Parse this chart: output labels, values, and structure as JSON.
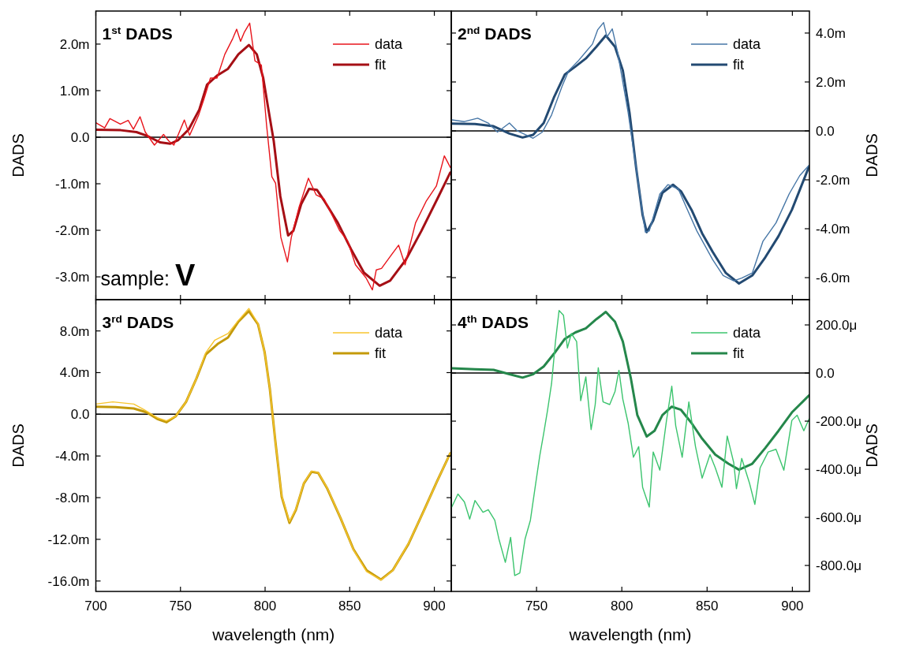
{
  "chart_data": [
    {
      "type": "line",
      "title": "1$^{st}$ DADS",
      "ylabel": "DADS",
      "xlim": [
        700,
        910
      ],
      "xticks": [
        700,
        750,
        800,
        850,
        900
      ],
      "ylim": [
        -3.49,
        2.71
      ],
      "yticks": [
        {
          "value": -3,
          "label": "-3.0m"
        },
        {
          "value": -2,
          "label": "-2.0m"
        },
        {
          "value": -1,
          "label": "-1.0m"
        },
        {
          "value": 0,
          "label": "0.0"
        },
        {
          "value": 1,
          "label": "1.0m"
        },
        {
          "value": 2,
          "label": "2.0m"
        }
      ],
      "tick_labels": "y",
      "legend": "top right",
      "ref_lines": [
        {
          "axis": "y",
          "value": 0,
          "color": "#000000"
        }
      ],
      "annotations": [
        "sample: V"
      ],
      "series": [
        {
          "name": "data",
          "color": "#e8141b",
          "x": [
            700,
            705.2,
            708.3,
            714.5,
            719.1,
            722.2,
            726.1,
            729.2,
            734.6,
            740,
            743.1,
            746.1,
            752.3,
            755.4,
            760.8,
            763.9,
            767.7,
            771.6,
            776.2,
            780.9,
            783.2,
            785.5,
            787.8,
            790.9,
            794,
            797.8,
            800.9,
            804,
            806.2,
            809.3,
            813.2,
            815.5,
            820.1,
            825.6,
            830.2,
            834.9,
            839.5,
            844.1,
            848.8,
            853.4,
            859.6,
            863.4,
            865.7,
            868.8,
            875,
            878.9,
            882.7,
            888.9,
            895.1,
            901.2,
            905.9,
            909.5
          ],
          "values": [
            0.31,
            0.2,
            0.4,
            0.28,
            0.36,
            0.17,
            0.44,
            0.11,
            -0.17,
            0.06,
            -0.08,
            -0.17,
            0.37,
            0.04,
            0.48,
            0.82,
            1.27,
            1.27,
            1.78,
            2.12,
            2.32,
            2.06,
            2.26,
            2.45,
            1.64,
            1.55,
            0.25,
            -0.85,
            -0.99,
            -2.15,
            -2.68,
            -2.15,
            -1.5,
            -0.88,
            -1.24,
            -1.33,
            -1.67,
            -2.01,
            -2.23,
            -2.74,
            -3.02,
            -3.28,
            -2.85,
            -2.82,
            -2.51,
            -2.32,
            -2.74,
            -1.84,
            -1.38,
            -1.05,
            -0.4,
            -0.65
          ]
        },
        {
          "name": "fit",
          "color": "#a50f15",
          "x": [
            700,
            714.7,
            724,
            730.1,
            737.9,
            744,
            748.7,
            754.9,
            761.1,
            765.7,
            771.9,
            778.1,
            784.2,
            790.4,
            795.1,
            798.9,
            802,
            805.1,
            809,
            813.6,
            816.7,
            821.3,
            826,
            830.6,
            835.2,
            843,
            850.7,
            858.4,
            867.7,
            873.9,
            883.2,
            892.4,
            901.7,
            909.4
          ],
          "values": [
            0.16,
            0.15,
            0.11,
            0.03,
            -0.11,
            -0.14,
            -0.06,
            0.17,
            0.59,
            1.13,
            1.33,
            1.47,
            1.78,
            1.98,
            1.78,
            1.27,
            0.59,
            -0.08,
            -1.27,
            -2.11,
            -2.01,
            -1.44,
            -1.11,
            -1.13,
            -1.38,
            -1.84,
            -2.4,
            -2.91,
            -3.19,
            -3.08,
            -2.63,
            -2.01,
            -1.33,
            -0.76
          ]
        }
      ]
    },
    {
      "type": "line",
      "title": "2$^{nd}$ DADS",
      "ylabel": "DADS",
      "xlim": [
        700,
        910
      ],
      "xticks": [
        750,
        800,
        850,
        900
      ],
      "ylim": [
        -6.9,
        4.9
      ],
      "yticks": [
        {
          "value": -6,
          "label": "-6.0m"
        },
        {
          "value": -4,
          "label": "-4.0m"
        },
        {
          "value": -2,
          "label": "-2.0m"
        },
        {
          "value": 0,
          "label": "0.0"
        },
        {
          "value": 2,
          "label": "2.0m"
        },
        {
          "value": 4,
          "label": "4.0m"
        }
      ],
      "tick_labels": "y",
      "legend": "top right",
      "ref_lines": [
        {
          "axis": "y",
          "value": 0,
          "color": "#000000"
        }
      ],
      "series": [
        {
          "name": "data",
          "color": "#4676a6",
          "x": [
            700.3,
            707.7,
            715.5,
            721.7,
            727.1,
            734.1,
            738.7,
            748,
            753.4,
            758.8,
            765,
            768.9,
            774.3,
            778.9,
            782.8,
            785.9,
            789.3,
            791.3,
            794.4,
            797.5,
            803.7,
            808.4,
            813.8,
            816.1,
            822.3,
            827,
            833.1,
            837.8,
            844,
            853.3,
            859.4,
            865.6,
            870.3,
            876.5,
            882.7,
            890.4,
            898.1,
            904.3,
            909.8
          ],
          "values": [
            0.45,
            0.38,
            0.52,
            0.32,
            -0.05,
            0.32,
            0,
            -0.3,
            -0.05,
            0.65,
            1.83,
            2.47,
            2.85,
            3.23,
            3.55,
            4.14,
            4.43,
            3.84,
            4.17,
            3.23,
            0.75,
            -1.51,
            -4.14,
            -4.09,
            -2.58,
            -2.2,
            -2.37,
            -3.12,
            -4.09,
            -5.27,
            -5.91,
            -6.13,
            -6.02,
            -5.81,
            -4.52,
            -3.76,
            -2.58,
            -1.83,
            -1.4
          ]
        },
        {
          "name": "fit",
          "color": "#234a72",
          "x": [
            700.3,
            713.9,
            724.8,
            734.1,
            741.8,
            748,
            754.2,
            760.4,
            766.6,
            772.8,
            778.9,
            785.1,
            790.6,
            796,
            800.6,
            804.5,
            808.4,
            812.2,
            814.6,
            818.4,
            823.8,
            830,
            834.7,
            840.9,
            847.1,
            853.3,
            861,
            868.7,
            876.5,
            884.2,
            891.9,
            899.7,
            909.8
          ],
          "values": [
            0.3,
            0.28,
            0.19,
            -0.11,
            -0.27,
            -0.16,
            0.32,
            1.4,
            2.31,
            2.63,
            2.96,
            3.44,
            3.9,
            3.44,
            2.47,
            0.75,
            -1.51,
            -3.44,
            -4.14,
            -3.66,
            -2.53,
            -2.2,
            -2.47,
            -3.23,
            -4.19,
            -4.95,
            -5.81,
            -6.24,
            -5.91,
            -5.16,
            -4.3,
            -3.23,
            -1.45
          ]
        }
      ]
    },
    {
      "type": "line",
      "title": "3$^{rd}$ DADS",
      "ylabel": "DADS",
      "xlabel": "wavelength (nm)",
      "xlim": [
        700,
        910
      ],
      "xticks": [
        700,
        750,
        800,
        850,
        900
      ],
      "ylim": [
        -17,
        11
      ],
      "yticks": [
        {
          "value": -16,
          "label": "-16.0m"
        },
        {
          "value": -12,
          "label": "-12.0m"
        },
        {
          "value": -8,
          "label": "-8.0m"
        },
        {
          "value": -4,
          "label": "-4.0m"
        },
        {
          "value": 0,
          "label": "0.0"
        },
        {
          "value": 4,
          "label": "4.0m"
        },
        {
          "value": 8,
          "label": "8.0m"
        }
      ],
      "legend": "top right",
      "ref_lines": [
        {
          "axis": "y",
          "value": 0,
          "color": "#000000"
        }
      ],
      "series": [
        {
          "name": "data",
          "color": "#f7c52e",
          "x": [
            700,
            710,
            722.4,
            728.6,
            736.3,
            741.7,
            747.1,
            753.3,
            759.5,
            764.9,
            770.3,
            778.1,
            784.2,
            790.4,
            795.8,
            799.7,
            802.8,
            805.9,
            809.8,
            814.4,
            818.2,
            822.9,
            827.5,
            831.4,
            836.8,
            844.5,
            852.2,
            860,
            868.5,
            875.4,
            884.7,
            894,
            901.7,
            909.4
          ],
          "values": [
            0.98,
            1.19,
            0.98,
            0.43,
            -0.33,
            -0.63,
            -0.2,
            1.19,
            3.46,
            5.9,
            7.12,
            7.75,
            9,
            10.15,
            8.7,
            5.98,
            2.45,
            -2.35,
            -7.8,
            -10.3,
            -9.1,
            -6.6,
            -5.45,
            -5.6,
            -7.1,
            -9.9,
            -13,
            -15.1,
            -15.9,
            -15,
            -12.4,
            -9.2,
            -6.4,
            -3.74
          ]
        },
        {
          "name": "fit",
          "color": "#c49a0a",
          "x": [
            700,
            711.6,
            722.4,
            730.1,
            736.3,
            741.7,
            747.1,
            753.3,
            759.5,
            764.9,
            771.9,
            778.1,
            784.2,
            790.4,
            795.8,
            799.7,
            802.8,
            805.9,
            809.8,
            814.4,
            818.2,
            822.9,
            827.5,
            831.4,
            836.8,
            844.5,
            852.2,
            860,
            868.5,
            875.4,
            884.7,
            894,
            901.7,
            909.4
          ],
          "values": [
            0.73,
            0.68,
            0.56,
            0.18,
            -0.45,
            -0.76,
            -0.2,
            1.19,
            3.46,
            5.73,
            6.74,
            7.37,
            8.89,
            9.9,
            8.64,
            5.98,
            2.45,
            -2.35,
            -7.9,
            -10.43,
            -9.17,
            -6.64,
            -5.51,
            -5.63,
            -7.15,
            -9.93,
            -12.95,
            -14.97,
            -15.86,
            -14.97,
            -12.45,
            -9.17,
            -6.39,
            -3.74
          ]
        }
      ]
    },
    {
      "type": "line",
      "title": "4$^{th}$ DADS",
      "ylabel": "DADS",
      "xlabel": "wavelength (nm)",
      "xlim": [
        700,
        910
      ],
      "xticks": [
        750,
        800,
        850,
        900
      ],
      "ylim": [
        -908,
        305
      ],
      "yticks": [
        {
          "value": -800,
          "label": "-800.0μ"
        },
        {
          "value": -600,
          "label": "-600.0μ"
        },
        {
          "value": -400,
          "label": "-400.0μ"
        },
        {
          "value": -200,
          "label": "-200.0μ"
        },
        {
          "value": 0,
          "label": "0.0"
        },
        {
          "value": 200,
          "label": "200.0μ"
        }
      ],
      "legend": "top right",
      "ref_lines": [
        {
          "axis": "y",
          "value": 0,
          "color": "#000000"
        }
      ],
      "series": [
        {
          "name": "data",
          "color": "#3cc46e",
          "x": [
            700.3,
            703.9,
            707.7,
            710.8,
            713.9,
            718.6,
            721.7,
            725.5,
            727.9,
            731.7,
            734.8,
            737.2,
            740.2,
            743.3,
            746.4,
            749.5,
            751.9,
            754.2,
            756.5,
            758.8,
            761.1,
            763.2,
            765.8,
            768.1,
            770.4,
            773.5,
            775.9,
            778.9,
            782,
            784.4,
            786.2,
            789,
            792.9,
            796,
            798.3,
            800.6,
            803.7,
            806.8,
            809.9,
            812.2,
            816.1,
            818.4,
            822.3,
            826.2,
            829.3,
            831.6,
            835.4,
            839.3,
            843.2,
            847.1,
            851.7,
            854.8,
            858.7,
            861.8,
            865.6,
            867.2,
            870.3,
            874.9,
            878,
            881.1,
            885.8,
            890.4,
            895,
            899.7,
            902.8,
            906.7,
            909.8
          ],
          "values": [
            -557,
            -503,
            -536,
            -607,
            -530,
            -579,
            -568,
            -612,
            -689,
            -787,
            -683,
            -842,
            -831,
            -689,
            -612,
            -459,
            -344,
            -251,
            -153,
            -44,
            131,
            260,
            240,
            104,
            164,
            131,
            -115,
            -16,
            -235,
            -131,
            22,
            -120,
            -131,
            -77,
            11,
            -109,
            -208,
            -350,
            -306,
            -475,
            -557,
            -328,
            -404,
            -197,
            -55,
            -219,
            -350,
            -120,
            -306,
            -437,
            -339,
            -394,
            -475,
            -262,
            -372,
            -481,
            -355,
            -459,
            -546,
            -394,
            -328,
            -317,
            -404,
            -197,
            -175,
            -240,
            -191
          ]
        },
        {
          "name": "fit",
          "color": "#25874b",
          "x": [
            700.3,
            713.9,
            724.8,
            734.1,
            741.8,
            748,
            754.2,
            760.4,
            766.6,
            772.8,
            778.9,
            785.1,
            790.6,
            796,
            800.6,
            805.3,
            809.1,
            814.6,
            819.2,
            823.8,
            829.3,
            834.7,
            840.9,
            847.1,
            854.8,
            862.5,
            868.7,
            876.5,
            884.2,
            891.9,
            899.7,
            909.8
          ],
          "values": [
            20,
            16,
            13,
            -5,
            -19,
            -5,
            27,
            82,
            142,
            169,
            186,
            224,
            254,
            213,
            131,
            -22,
            -175,
            -264,
            -240,
            -175,
            -140,
            -153,
            -208,
            -273,
            -339,
            -377,
            -402,
            -377,
            -311,
            -240,
            -164,
            -93
          ]
        }
      ]
    }
  ]
}
